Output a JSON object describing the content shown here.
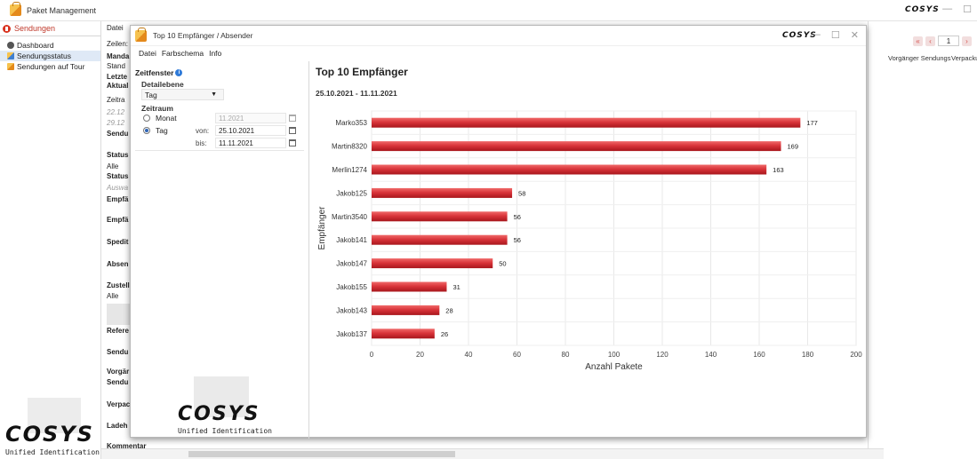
{
  "app": {
    "title": "Paket Management",
    "brand": "COSYS",
    "win_controls": [
      "—",
      "☐"
    ]
  },
  "sidebar": {
    "section": "Sendungen",
    "items": [
      {
        "label": "Dashboard",
        "selected": false
      },
      {
        "label": "Sendungsstatus",
        "selected": true
      },
      {
        "label": "Sendungen auf Tour",
        "selected": false
      }
    ],
    "logo": "COSYS",
    "logo_tagline": "Unified Identification"
  },
  "background_form": {
    "rows": [
      {
        "text": "Datei",
        "style": "normal"
      },
      {
        "text": "Zeilen:",
        "style": "normal"
      },
      {
        "text": "Manda",
        "style": "b"
      },
      {
        "text": "Stand",
        "style": "normal"
      },
      {
        "text": "Letzte",
        "style": "b"
      },
      {
        "text": "Aktual",
        "style": "b"
      },
      {
        "text": "Zeitra",
        "style": "normal"
      },
      {
        "text": "22.12",
        "style": "i"
      },
      {
        "text": "29.12",
        "style": "i"
      },
      {
        "text": "Sendu",
        "style": "b"
      },
      {
        "text": "Status",
        "style": "b"
      },
      {
        "text": "Alle",
        "style": "normal"
      },
      {
        "text": "Status",
        "style": "b"
      },
      {
        "text": "Auswa",
        "style": "i"
      },
      {
        "text": "Empfä",
        "style": "b"
      },
      {
        "text": "Empfä",
        "style": "b"
      },
      {
        "text": "Spedit",
        "style": "b"
      },
      {
        "text": "Absen",
        "style": "b"
      },
      {
        "text": "Zustell",
        "style": "b"
      },
      {
        "text": "Alle",
        "style": "normal"
      },
      {
        "text": "Refere",
        "style": "b"
      },
      {
        "text": "Sendu",
        "style": "b"
      },
      {
        "text": "Vorgär",
        "style": "b"
      },
      {
        "text": "Sendu",
        "style": "b"
      },
      {
        "text": "Verpac",
        "style": "b"
      },
      {
        "text": "Ladeh",
        "style": "b"
      },
      {
        "text": "Kommentar",
        "style": "b"
      }
    ],
    "pager_page": "1",
    "columns": [
      "Vorgänger Sendungs",
      "Verpackun"
    ]
  },
  "dialog": {
    "title": "Top 10 Empfänger / Absender",
    "menu": [
      "Datei",
      "Farbschema",
      "Info"
    ],
    "controls": [
      "—",
      "☐",
      "✕"
    ],
    "timewindow": {
      "heading": "Zeitfenster",
      "detail_label": "Detailebene",
      "detail_value": "Tag",
      "range_label": "Zeitraum",
      "monat_label": "Monat",
      "monat_value": "11.2021",
      "tag_label": "Tag",
      "von_label": "von:",
      "von_value": "25.10.2021",
      "bis_label": "bis:",
      "bis_value": "11.11.2021",
      "selected": "Tag"
    },
    "logo": "COSYS",
    "logo_tagline": "Unified Identification"
  },
  "chart_data": {
    "type": "bar",
    "orientation": "horizontal",
    "title": "Top 10 Empfänger",
    "subtitle": "25.10.2021 - 11.11.2021",
    "categories": [
      "Marko353",
      "Martin8320",
      "Merlin1274",
      "Jakob125",
      "Martin3540",
      "Jakob141",
      "Jakob147",
      "Jakob155",
      "Jakob143",
      "Jakob137"
    ],
    "values": [
      177,
      169,
      163,
      58,
      56,
      56,
      50,
      31,
      28,
      26
    ],
    "xlabel": "Anzahl Pakete",
    "ylabel": "Empfänger",
    "xlim": [
      0,
      200
    ],
    "xticks": [
      0,
      20,
      40,
      60,
      80,
      100,
      120,
      140,
      160,
      180,
      200
    ],
    "grid": true,
    "bar_color": "#d9343a"
  }
}
